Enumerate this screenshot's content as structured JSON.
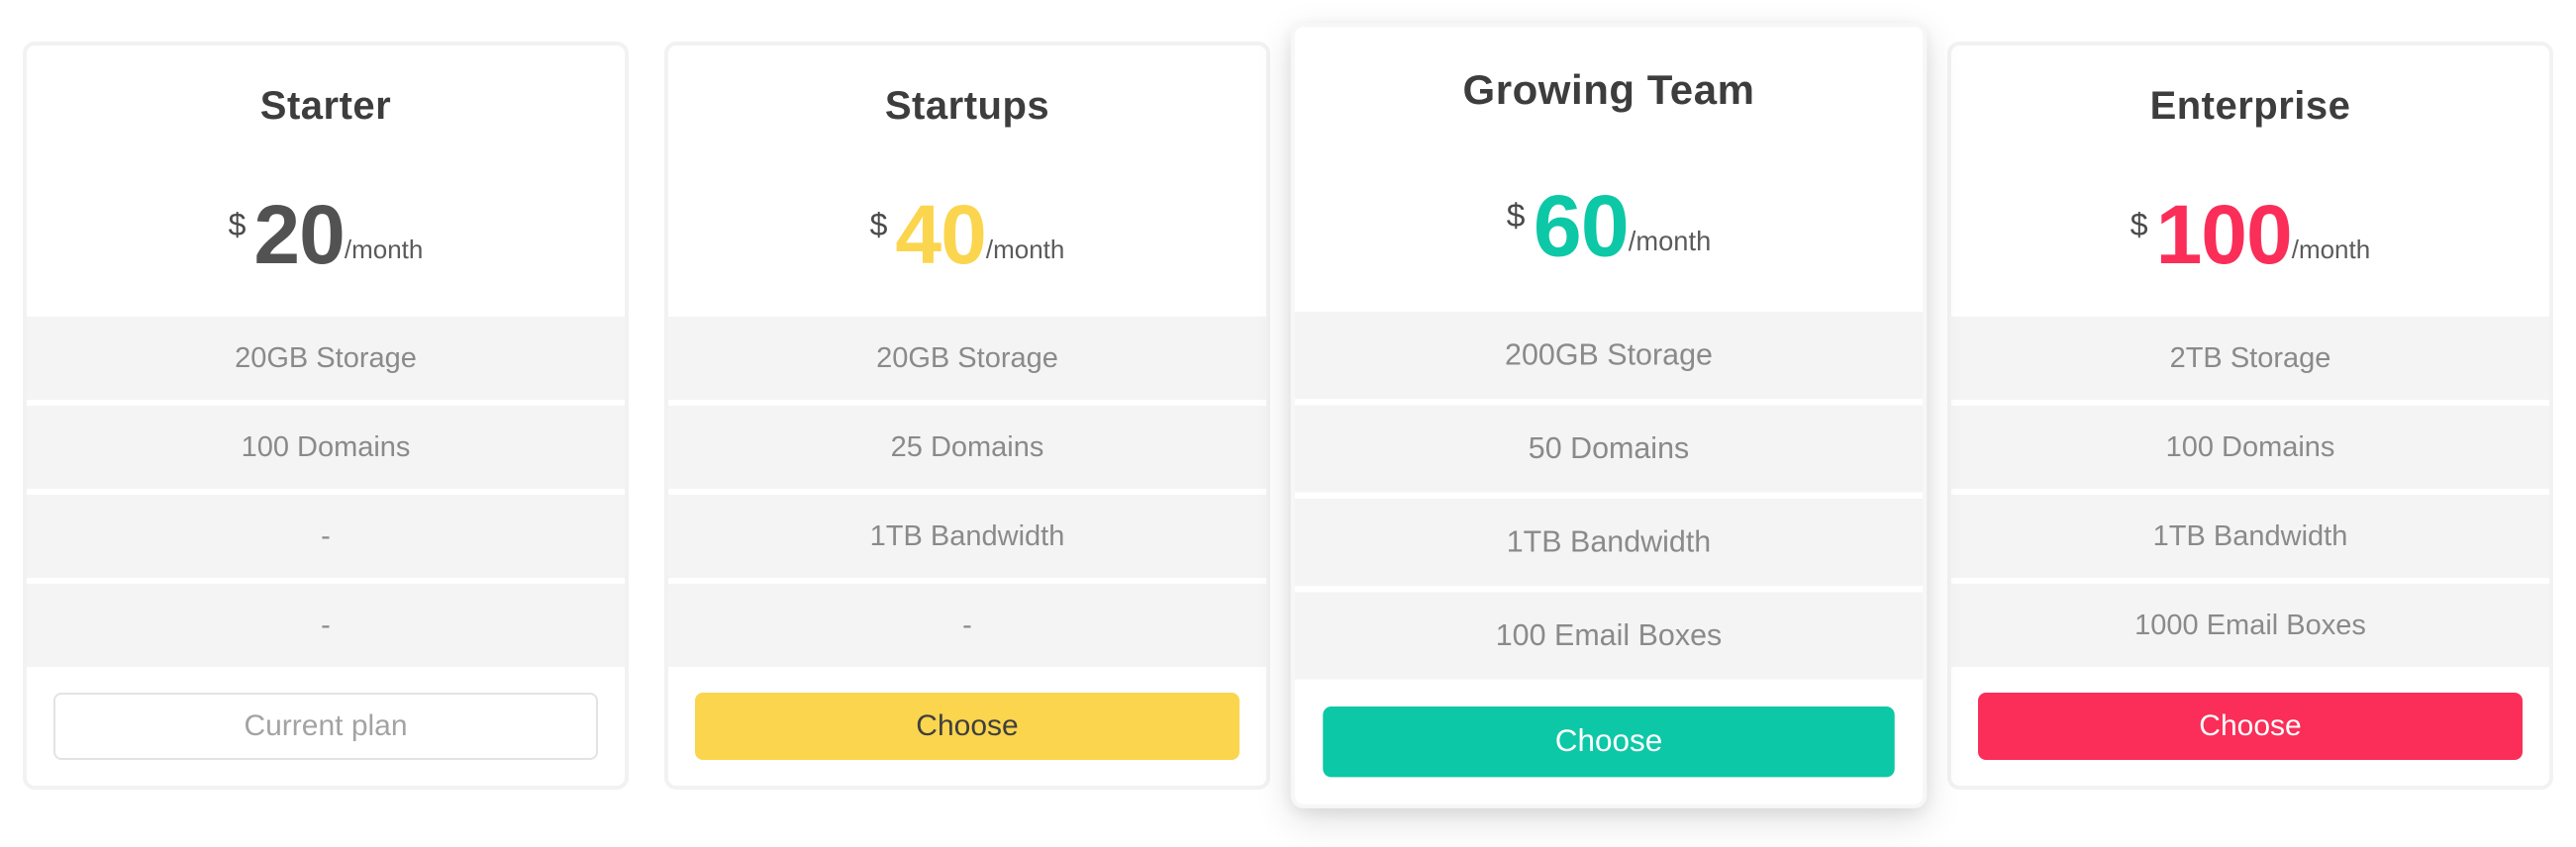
{
  "page": {
    "background": "#ffffff"
  },
  "plans": [
    {
      "name": "Starter",
      "currency": "$",
      "amount": "20",
      "period": "/month",
      "amount_color": "#525252",
      "features": [
        "20GB Storage",
        "100 Domains",
        "-",
        "-"
      ],
      "button_label": "Current plan",
      "button_style": "outline",
      "button_bg": "#ffffff",
      "button_text_color": "#a3a3a3",
      "button_border_color": "#e3e3e3",
      "featured": false
    },
    {
      "name": "Startups",
      "currency": "$",
      "amount": "40",
      "period": "/month",
      "amount_color": "#fbd54d",
      "features": [
        "20GB Storage",
        "25 Domains",
        "1TB Bandwidth",
        "-"
      ],
      "button_label": "Choose",
      "button_style": "solid",
      "button_bg": "#fbd54d",
      "button_text_color": "#3f3f3f",
      "featured": false
    },
    {
      "name": "Growing Team",
      "currency": "$",
      "amount": "60",
      "period": "/month",
      "amount_color": "#0dc8a6",
      "features": [
        "200GB Storage",
        "50 Domains",
        "1TB Bandwidth",
        "100 Email Boxes"
      ],
      "button_label": "Choose",
      "button_style": "solid",
      "button_bg": "#0dc8a6",
      "button_text_color": "#ffffff",
      "featured": true
    },
    {
      "name": "Enterprise",
      "currency": "$",
      "amount": "100",
      "period": "/month",
      "amount_color": "#fa2e58",
      "features": [
        "2TB Storage",
        "100 Domains",
        "1TB Bandwidth",
        "1000 Email Boxes"
      ],
      "button_label": "Choose",
      "button_style": "solid",
      "button_bg": "#fa2e58",
      "button_text_color": "#ffffff",
      "featured": false
    }
  ]
}
